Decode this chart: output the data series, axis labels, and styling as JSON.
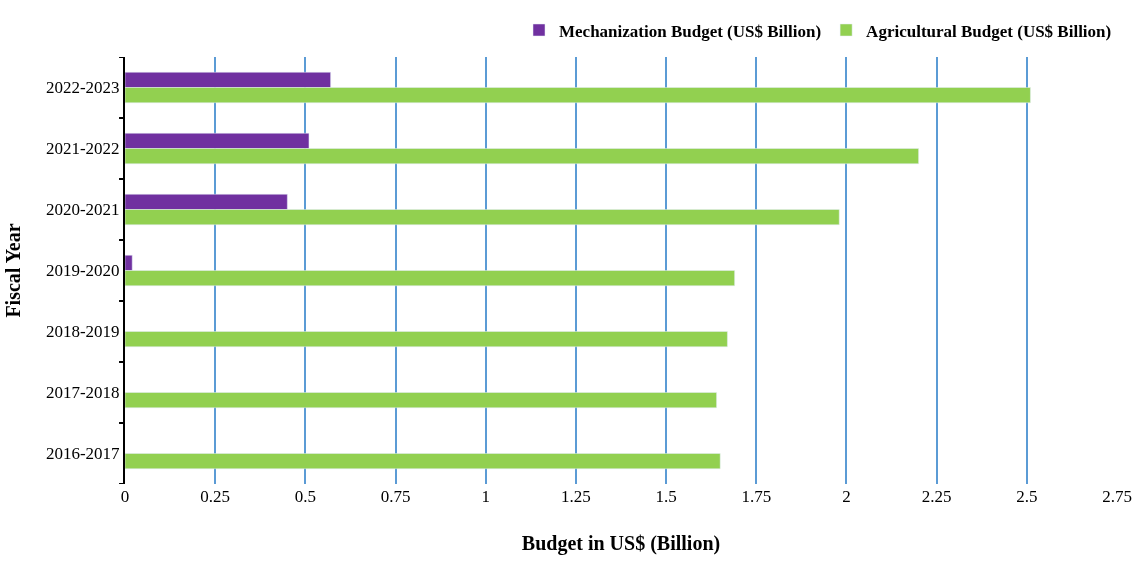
{
  "chart_data": {
    "type": "bar",
    "orientation": "horizontal",
    "xlabel": "Budget in US$ (Billion)",
    "ylabel": "Fiscal Year",
    "categories": [
      "2022-2023",
      "2021-2022",
      "2020-2021",
      "2019-2020",
      "2018-2019",
      "2017-2018",
      "2016-2017"
    ],
    "series": [
      {
        "name": "Mechanization Budget (US$ Billion)",
        "color": "#7030a0",
        "values": [
          0.57,
          0.51,
          0.45,
          0.02,
          null,
          null,
          null
        ]
      },
      {
        "name": "Agricultural Budget (US$ Billion)",
        "color": "#92d050",
        "values": [
          2.51,
          2.2,
          1.98,
          1.69,
          1.67,
          1.64,
          1.65
        ]
      }
    ],
    "xlim": [
      0,
      2.75
    ],
    "xticks": [
      0,
      0.25,
      0.5,
      0.75,
      1,
      1.25,
      1.5,
      1.75,
      2,
      2.25,
      2.5,
      2.75
    ],
    "grid": "x",
    "legend": "top right"
  }
}
